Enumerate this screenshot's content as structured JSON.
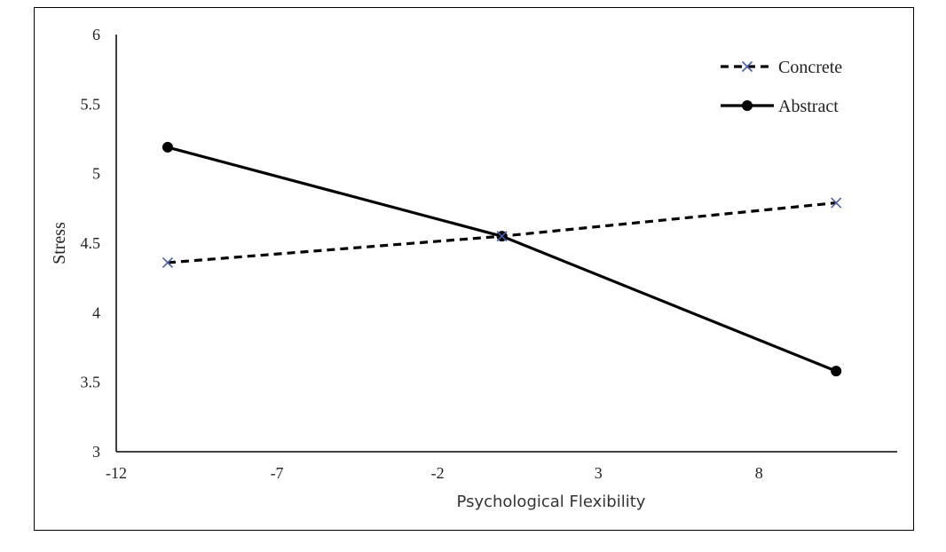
{
  "chart_data": {
    "type": "line",
    "xlabel": "Psychological Flexibility",
    "ylabel": "Stress",
    "xlim": [
      -12,
      12.3
    ],
    "ylim": [
      3,
      6
    ],
    "xticks": [
      "-12",
      "-7",
      "-2",
      "3",
      "8"
    ],
    "xtick_values": [
      -12,
      -7,
      -2,
      3,
      8
    ],
    "yticks": [
      "3",
      "3.5",
      "4",
      "4.5",
      "5",
      "5.5",
      "6"
    ],
    "ytick_values": [
      3,
      3.5,
      4,
      4.5,
      5,
      5.5,
      6
    ],
    "grid": false,
    "legend_position": "top-right",
    "series": [
      {
        "name": "Concrete",
        "line_style": "dashed",
        "marker": "x",
        "line_color": "#000000",
        "marker_color": "#4a5fa8",
        "x": [
          -10.4,
          0,
          10.4
        ],
        "y": [
          4.36,
          4.55,
          4.79
        ]
      },
      {
        "name": "Abstract",
        "line_style": "solid",
        "marker": "circle",
        "line_color": "#000000",
        "marker_color": "#000000",
        "x": [
          -10.4,
          0,
          10.4
        ],
        "y": [
          5.19,
          4.55,
          3.58
        ]
      }
    ]
  }
}
